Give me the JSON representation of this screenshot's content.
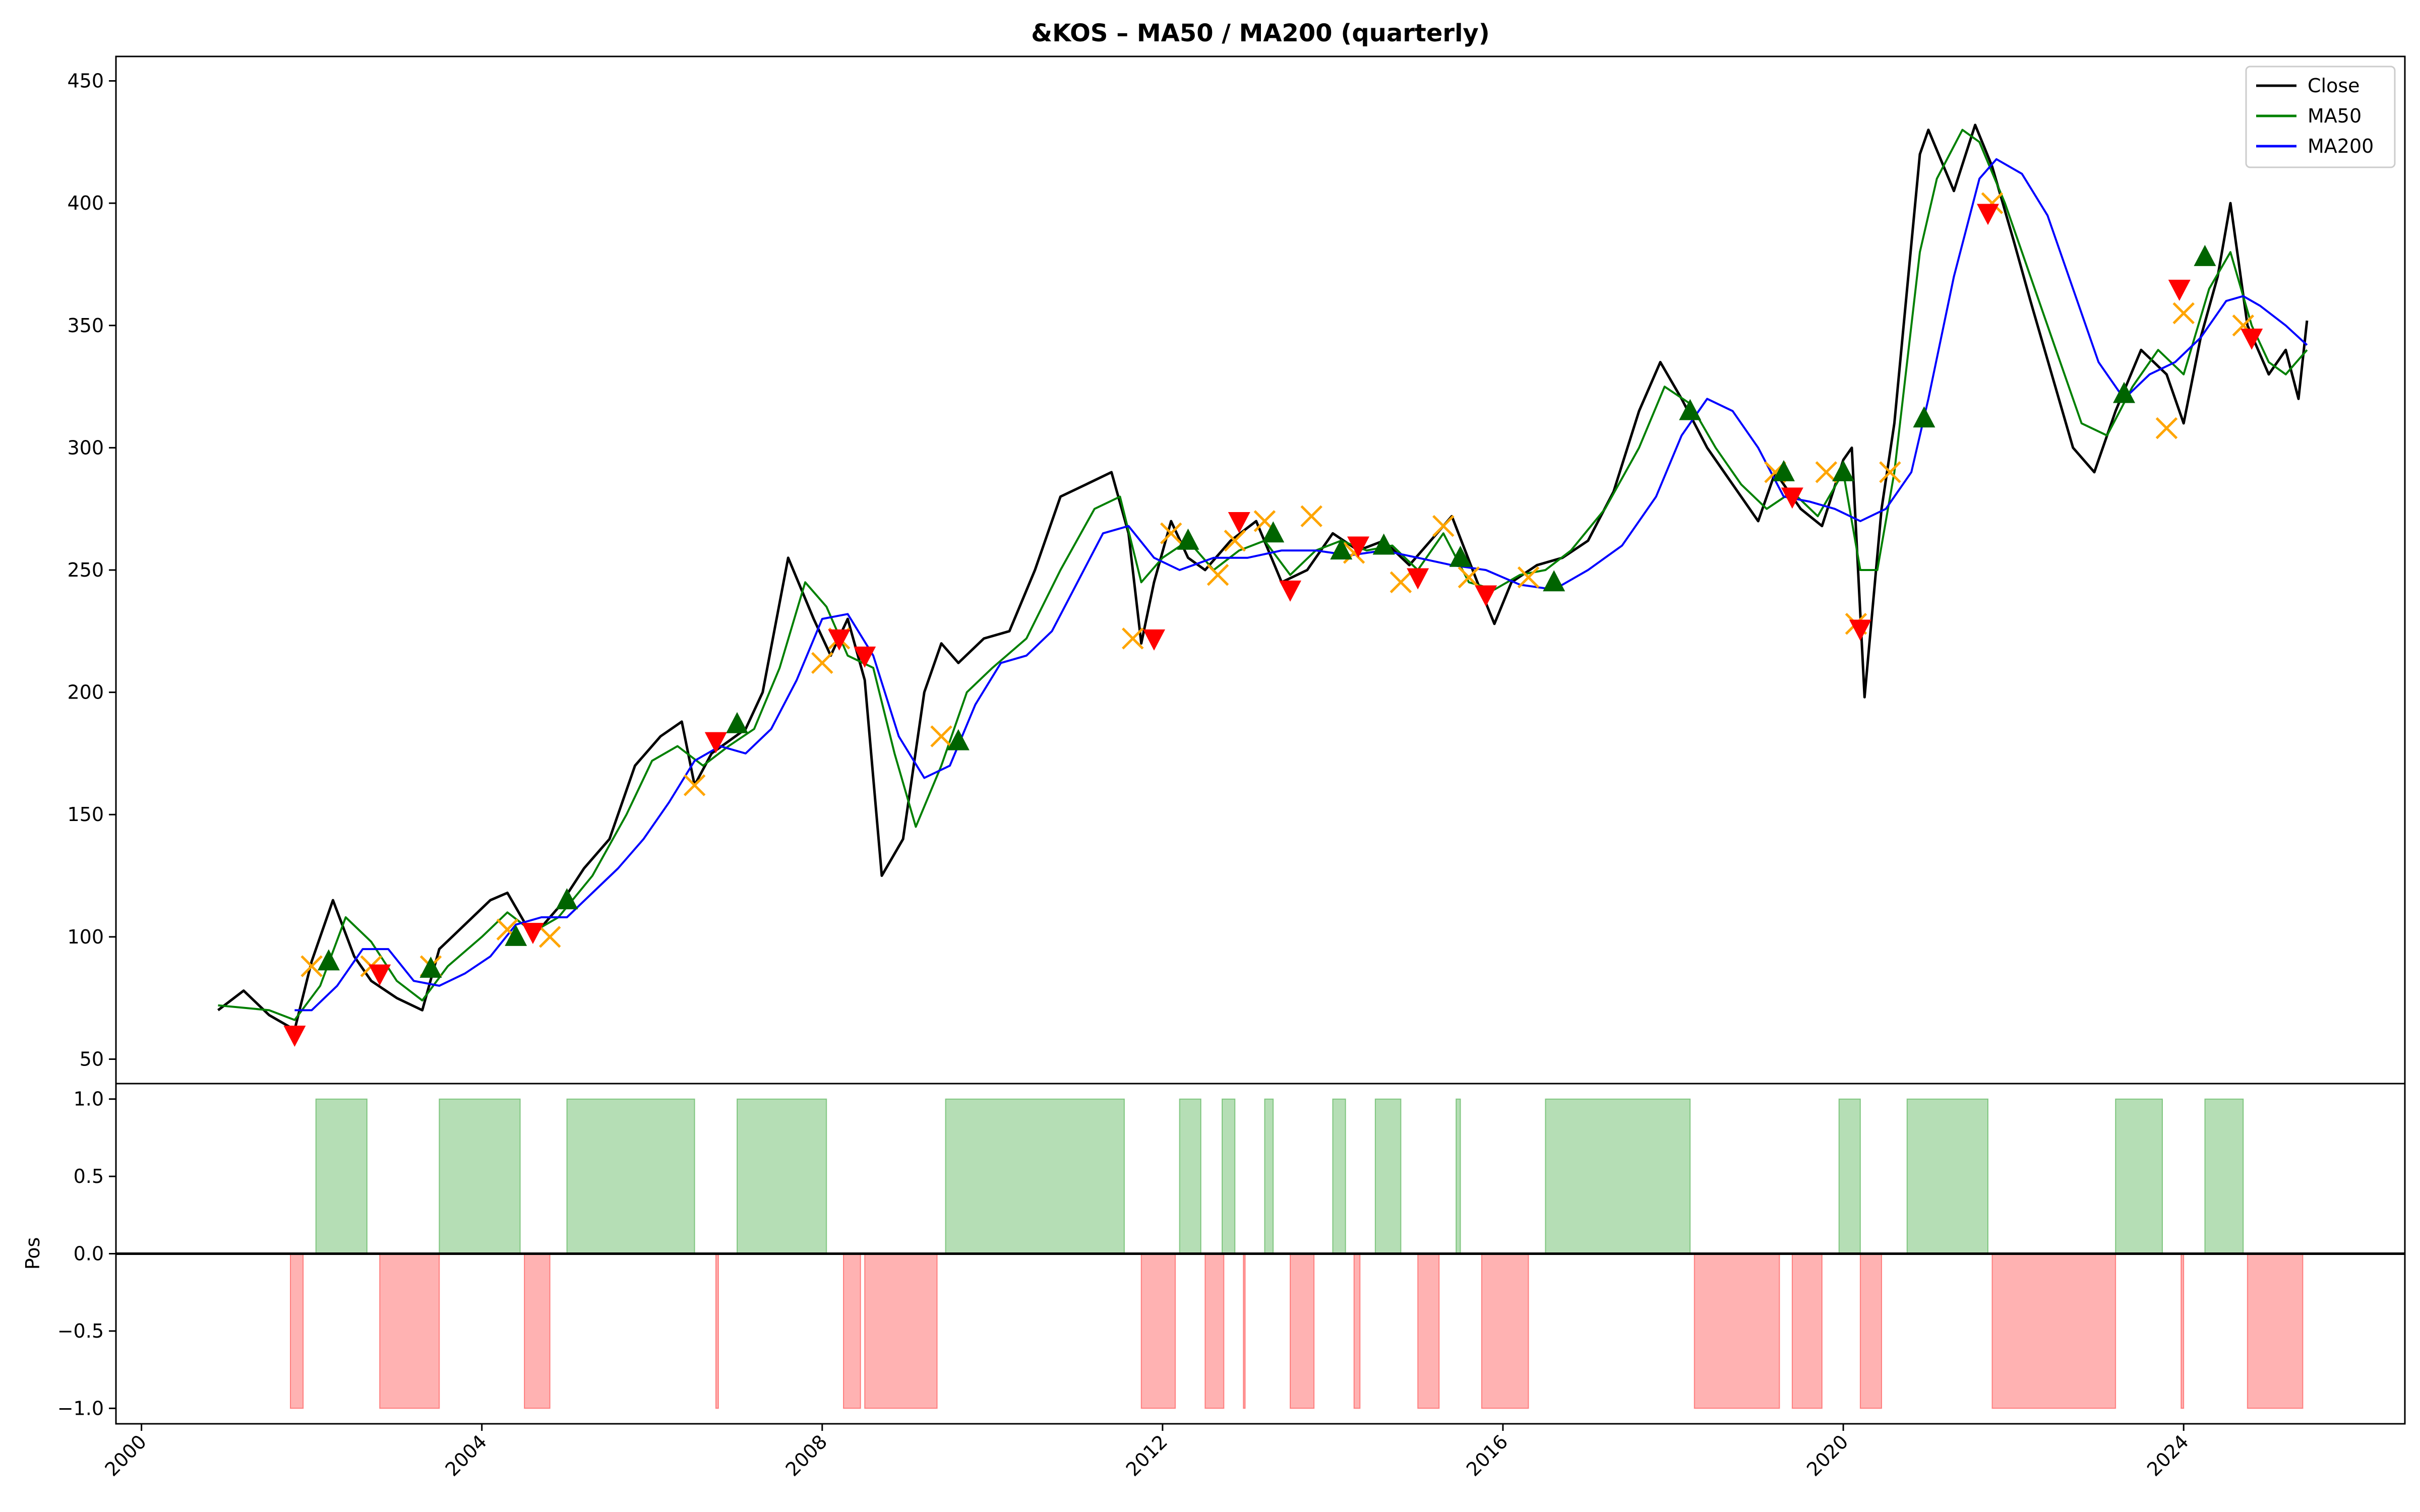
{
  "chart_data": {
    "type": "line",
    "title": "&KOS – MA50 / MA200 (quarterly)",
    "price_panel": {
      "ylim": [
        40,
        460
      ],
      "yticks": [
        50,
        100,
        150,
        200,
        250,
        300,
        350,
        400,
        450
      ],
      "legend": {
        "placement": "top-right",
        "entries": [
          "Close",
          "MA50",
          "MA200"
        ]
      },
      "series": [
        {
          "name": "Close",
          "color": "#000000",
          "x": [
            2000.9,
            2001.2,
            2001.5,
            2001.8,
            2002.0,
            2002.25,
            2002.5,
            2002.7,
            2003.0,
            2003.3,
            2003.5,
            2003.8,
            2004.1,
            2004.3,
            2004.6,
            2004.9,
            2005.2,
            2005.5,
            2005.8,
            2006.1,
            2006.35,
            2006.5,
            2006.7,
            2006.9,
            2007.1,
            2007.3,
            2007.6,
            2007.9,
            2008.1,
            2008.3,
            2008.5,
            2008.7,
            2008.95,
            2009.2,
            2009.4,
            2009.6,
            2009.9,
            2010.2,
            2010.5,
            2010.8,
            2011.1,
            2011.4,
            2011.6,
            2011.75,
            2011.9,
            2012.1,
            2012.3,
            2012.5,
            2012.8,
            2013.1,
            2013.4,
            2013.7,
            2014.0,
            2014.3,
            2014.6,
            2014.9,
            2015.1,
            2015.4,
            2015.7,
            2015.9,
            2016.1,
            2016.4,
            2016.7,
            2017.0,
            2017.3,
            2017.6,
            2017.85,
            2018.1,
            2018.4,
            2018.7,
            2019.0,
            2019.2,
            2019.5,
            2019.75,
            2020.0,
            2020.1,
            2020.25,
            2020.45,
            2020.6,
            2020.9,
            2021.0,
            2021.3,
            2021.55,
            2021.75,
            2022.0,
            2022.2,
            2022.45,
            2022.7,
            2022.95,
            2023.2,
            2023.5,
            2023.8,
            2024.0,
            2024.2,
            2024.4,
            2024.55,
            2024.75,
            2025.0,
            2025.2,
            2025.35,
            2025.45
          ],
          "y": [
            70,
            78,
            68,
            62,
            90,
            115,
            92,
            82,
            75,
            70,
            95,
            105,
            115,
            118,
            100,
            112,
            128,
            140,
            170,
            182,
            188,
            162,
            175,
            180,
            185,
            200,
            255,
            230,
            215,
            230,
            205,
            125,
            140,
            200,
            220,
            212,
            222,
            225,
            250,
            280,
            285,
            290,
            265,
            220,
            245,
            270,
            255,
            250,
            262,
            270,
            245,
            250,
            265,
            258,
            262,
            252,
            260,
            272,
            245,
            228,
            245,
            252,
            255,
            262,
            282,
            315,
            335,
            320,
            300,
            285,
            270,
            290,
            275,
            268,
            295,
            300,
            198,
            275,
            310,
            420,
            430,
            405,
            432,
            415,
            385,
            360,
            330,
            300,
            290,
            315,
            340,
            330,
            310,
            345,
            370,
            400,
            350,
            330,
            340,
            320,
            352
          ]
        },
        {
          "name": "MA50",
          "color": "#008000",
          "x": [
            2000.9,
            2001.5,
            2001.8,
            2002.1,
            2002.4,
            2002.7,
            2003.0,
            2003.3,
            2003.6,
            2004.0,
            2004.3,
            2004.6,
            2004.9,
            2005.3,
            2005.7,
            2006.0,
            2006.3,
            2006.6,
            2006.9,
            2007.2,
            2007.5,
            2007.8,
            2008.05,
            2008.3,
            2008.6,
            2008.85,
            2009.1,
            2009.4,
            2009.7,
            2010.0,
            2010.4,
            2010.8,
            2011.2,
            2011.5,
            2011.75,
            2012.0,
            2012.3,
            2012.6,
            2012.9,
            2013.2,
            2013.5,
            2013.8,
            2014.1,
            2014.4,
            2014.7,
            2015.0,
            2015.3,
            2015.6,
            2015.9,
            2016.2,
            2016.5,
            2016.8,
            2017.2,
            2017.6,
            2017.9,
            2018.2,
            2018.5,
            2018.8,
            2019.1,
            2019.4,
            2019.7,
            2020.0,
            2020.2,
            2020.4,
            2020.6,
            2020.9,
            2021.1,
            2021.4,
            2021.6,
            2021.9,
            2022.2,
            2022.5,
            2022.8,
            2023.1,
            2023.4,
            2023.7,
            2024.0,
            2024.3,
            2024.55,
            2024.8,
            2025.0,
            2025.2,
            2025.45
          ],
          "y": [
            72,
            70,
            66,
            80,
            108,
            98,
            82,
            74,
            88,
            100,
            110,
            102,
            108,
            125,
            150,
            172,
            178,
            170,
            178,
            185,
            210,
            245,
            235,
            215,
            210,
            175,
            145,
            170,
            200,
            210,
            222,
            250,
            275,
            280,
            245,
            255,
            262,
            250,
            258,
            262,
            248,
            258,
            262,
            258,
            260,
            250,
            265,
            245,
            242,
            248,
            250,
            258,
            275,
            300,
            325,
            318,
            300,
            285,
            275,
            282,
            272,
            290,
            250,
            250,
            290,
            380,
            410,
            430,
            425,
            400,
            370,
            340,
            310,
            305,
            325,
            340,
            330,
            365,
            380,
            350,
            335,
            330,
            340
          ]
        },
        {
          "name": "MA200",
          "color": "#0000ff",
          "x": [
            2001.8,
            2002.0,
            2002.3,
            2002.6,
            2002.9,
            2003.2,
            2003.5,
            2003.8,
            2004.1,
            2004.4,
            2004.7,
            2005.0,
            2005.3,
            2005.6,
            2005.9,
            2006.2,
            2006.5,
            2006.8,
            2007.1,
            2007.4,
            2007.7,
            2008.0,
            2008.3,
            2008.6,
            2008.9,
            2009.2,
            2009.5,
            2009.8,
            2010.1,
            2010.4,
            2010.7,
            2011.0,
            2011.3,
            2011.6,
            2011.9,
            2012.2,
            2012.6,
            2013.0,
            2013.4,
            2013.8,
            2014.2,
            2014.6,
            2015.0,
            2015.4,
            2015.8,
            2016.2,
            2016.6,
            2017.0,
            2017.4,
            2017.8,
            2018.1,
            2018.4,
            2018.7,
            2019.0,
            2019.3,
            2019.6,
            2019.9,
            2020.2,
            2020.5,
            2020.8,
            2021.0,
            2021.3,
            2021.6,
            2021.8,
            2022.1,
            2022.4,
            2022.7,
            2023.0,
            2023.3,
            2023.6,
            2023.9,
            2024.2,
            2024.5,
            2024.7,
            2024.9,
            2025.2,
            2025.45
          ],
          "y": [
            70,
            70,
            80,
            95,
            95,
            82,
            80,
            85,
            92,
            105,
            108,
            108,
            118,
            128,
            140,
            155,
            172,
            178,
            175,
            185,
            205,
            230,
            232,
            215,
            182,
            165,
            170,
            195,
            212,
            215,
            225,
            245,
            265,
            268,
            255,
            250,
            255,
            255,
            258,
            258,
            256,
            258,
            255,
            252,
            250,
            244,
            242,
            250,
            260,
            280,
            305,
            320,
            315,
            300,
            280,
            278,
            275,
            270,
            275,
            290,
            320,
            370,
            410,
            418,
            412,
            395,
            365,
            335,
            320,
            330,
            335,
            345,
            360,
            362,
            358,
            350,
            342
          ]
        }
      ],
      "markers": {
        "buy": {
          "color": "#006400",
          "x": [
            2002.2,
            2003.4,
            2004.4,
            2005.0,
            2007.0,
            2009.6,
            2012.3,
            2013.3,
            2014.1,
            2014.6,
            2015.5,
            2016.6,
            2018.2,
            2019.3,
            2020.0,
            2020.95,
            2023.3,
            2024.25
          ],
          "y": [
            90,
            87,
            100,
            115,
            187,
            180,
            262,
            265,
            258,
            260,
            255,
            245,
            315,
            290,
            290,
            312,
            322,
            378
          ]
        },
        "sell": {
          "color": "#ff0000",
          "x": [
            2001.8,
            2002.8,
            2004.6,
            2006.75,
            2008.2,
            2008.5,
            2011.9,
            2012.9,
            2013.5,
            2014.3,
            2015.0,
            2015.8,
            2019.4,
            2020.2,
            2021.7,
            2023.95,
            2024.8
          ],
          "y": [
            60,
            85,
            102,
            180,
            222,
            215,
            222,
            270,
            242,
            260,
            247,
            240,
            280,
            226,
            396,
            365,
            345
          ]
        },
        "exit": {
          "color": "#ffa500",
          "x": [
            2002.0,
            2002.7,
            2003.4,
            2004.3,
            2004.8,
            2006.5,
            2008.0,
            2008.2,
            2009.4,
            2011.65,
            2012.1,
            2012.65,
            2012.85,
            2013.2,
            2013.75,
            2014.25,
            2014.8,
            2015.3,
            2015.6,
            2016.3,
            2019.2,
            2019.8,
            2020.15,
            2020.55,
            2021.75,
            2023.8,
            2024.0,
            2024.7
          ],
          "y": [
            88,
            88,
            88,
            103,
            100,
            162,
            212,
            222,
            182,
            222,
            265,
            248,
            262,
            270,
            272,
            257,
            245,
            268,
            247,
            247,
            290,
            290,
            228,
            290,
            400,
            308,
            355,
            350
          ]
        }
      }
    },
    "position_panel": {
      "ylabel": "Pos",
      "ylim": [
        -1.1,
        1.1
      ],
      "yticks": [
        "1.0",
        "0.5",
        "0.0",
        "−0.5",
        "−1.0"
      ],
      "long": {
        "color": "#2ca02c",
        "intervals": [
          [
            2002.05,
            2002.65
          ],
          [
            2003.5,
            2004.45
          ],
          [
            2005.0,
            2006.5
          ],
          [
            2007.0,
            2008.05
          ],
          [
            2009.45,
            2011.55
          ],
          [
            2012.2,
            2012.45
          ],
          [
            2012.7,
            2012.85
          ],
          [
            2013.2,
            2013.3
          ],
          [
            2014.0,
            2014.15
          ],
          [
            2014.5,
            2014.8
          ],
          [
            2015.45,
            2015.5
          ],
          [
            2016.5,
            2018.2
          ],
          [
            2019.95,
            2020.2
          ],
          [
            2020.75,
            2021.7
          ],
          [
            2023.2,
            2023.75
          ],
          [
            2024.25,
            2024.7
          ]
        ]
      },
      "short": {
        "color": "#ff0000",
        "intervals": [
          [
            2001.75,
            2001.9
          ],
          [
            2002.8,
            2003.5
          ],
          [
            2004.5,
            2004.8
          ],
          [
            2006.75,
            2006.78
          ],
          [
            2008.25,
            2008.45
          ],
          [
            2008.5,
            2009.35
          ],
          [
            2011.75,
            2012.15
          ],
          [
            2012.5,
            2012.72
          ],
          [
            2012.95,
            2012.97
          ],
          [
            2013.5,
            2013.78
          ],
          [
            2014.25,
            2014.32
          ],
          [
            2015.0,
            2015.25
          ],
          [
            2015.75,
            2016.3
          ],
          [
            2018.25,
            2019.25
          ],
          [
            2019.4,
            2019.75
          ],
          [
            2020.2,
            2020.45
          ],
          [
            2021.75,
            2023.2
          ],
          [
            2023.97,
            2024.0
          ],
          [
            2024.75,
            2025.4
          ]
        ]
      }
    },
    "x_axis": {
      "xlim": [
        1999.7,
        2026.6
      ],
      "ticks": [
        "2000",
        "2004",
        "2008",
        "2012",
        "2016",
        "2020",
        "2024"
      ],
      "tick_values": [
        2000,
        2004,
        2008,
        2012,
        2016,
        2020,
        2024
      ]
    }
  }
}
